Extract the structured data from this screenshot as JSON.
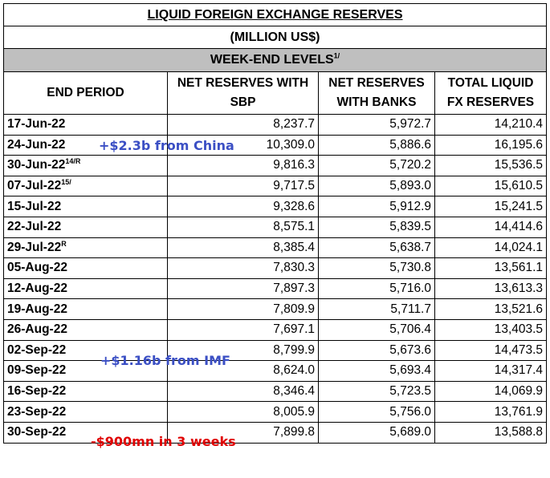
{
  "title": "LIQUID FOREIGN EXCHANGE RESERVES",
  "subtitle": "(MILLION US$)",
  "section": "WEEK-END LEVELS",
  "section_sup": "1/",
  "headers": {
    "period": "END PERIOD",
    "sbp_line1": "NET RESERVES WITH",
    "sbp_line2": "SBP",
    "banks_line1": "NET RESERVES",
    "banks_line2": "WITH BANKS",
    "total_line1": "TOTAL LIQUID",
    "total_line2": "FX RESERVES"
  },
  "rows": [
    {
      "period": "17-Jun-22",
      "sup": "",
      "sbp": "8,237.7",
      "banks": "5,972.7",
      "total": "14,210.4"
    },
    {
      "period": "24-Jun-22",
      "sup": "",
      "sbp": "10,309.0",
      "banks": "5,886.6",
      "total": "16,195.6"
    },
    {
      "period": "30-Jun-22",
      "sup": "14/R",
      "sbp": "9,816.3",
      "banks": "5,720.2",
      "total": "15,536.5"
    },
    {
      "period": "07-Jul-22",
      "sup": "15/",
      "sbp": "9,717.5",
      "banks": "5,893.0",
      "total": "15,610.5"
    },
    {
      "period": "15-Jul-22",
      "sup": "",
      "sbp": "9,328.6",
      "banks": "5,912.9",
      "total": "15,241.5"
    },
    {
      "period": "22-Jul-22",
      "sup": "",
      "sbp": "8,575.1",
      "banks": "5,839.5",
      "total": "14,414.6"
    },
    {
      "period": "29-Jul-22",
      "sup": "R",
      "sbp": "8,385.4",
      "banks": "5,638.7",
      "total": "14,024.1"
    },
    {
      "period": "05-Aug-22",
      "sup": "",
      "sbp": "7,830.3",
      "banks": "5,730.8",
      "total": "13,561.1"
    },
    {
      "period": "12-Aug-22",
      "sup": "",
      "sbp": "7,897.3",
      "banks": "5,716.0",
      "total": "13,613.3"
    },
    {
      "period": "19-Aug-22",
      "sup": "",
      "sbp": "7,809.9",
      "banks": "5,711.7",
      "total": "13,521.6"
    },
    {
      "period": "26-Aug-22",
      "sup": "",
      "sbp": "7,697.1",
      "banks": "5,706.4",
      "total": "13,403.5"
    },
    {
      "period": "02-Sep-22",
      "sup": "",
      "sbp": "8,799.9",
      "banks": "5,673.6",
      "total": "14,473.5"
    },
    {
      "period": "09-Sep-22",
      "sup": "",
      "sbp": "8,624.0",
      "banks": "5,693.4",
      "total": "14,317.4"
    },
    {
      "period": "16-Sep-22",
      "sup": "",
      "sbp": "8,346.4",
      "banks": "5,723.5",
      "total": "14,069.9"
    },
    {
      "period": "23-Sep-22",
      "sup": "",
      "sbp": "8,005.9",
      "banks": "5,756.0",
      "total": "13,761.9"
    },
    {
      "period": "30-Sep-22",
      "sup": "",
      "sbp": "7,899.8",
      "banks": "5,689.0",
      "total": "13,588.8"
    }
  ],
  "annotations": {
    "china": "+$2.3b from China",
    "imf": "+$1.16b from IMF",
    "decline": "-$900mn in 3 weeks",
    "china_color": "#3b4fc4",
    "imf_color": "#3b4fc4",
    "decline_color": "#e00000"
  },
  "chart_data": {
    "type": "table",
    "title": "LIQUID FOREIGN EXCHANGE RESERVES",
    "subtitle": "(MILLION US$)",
    "columns": [
      "END PERIOD",
      "NET RESERVES WITH SBP",
      "NET RESERVES WITH BANKS",
      "TOTAL LIQUID FX RESERVES"
    ],
    "categories": [
      "17-Jun-22",
      "24-Jun-22",
      "30-Jun-22",
      "07-Jul-22",
      "15-Jul-22",
      "22-Jul-22",
      "29-Jul-22",
      "05-Aug-22",
      "12-Aug-22",
      "19-Aug-22",
      "26-Aug-22",
      "02-Sep-22",
      "09-Sep-22",
      "16-Sep-22",
      "23-Sep-22",
      "30-Sep-22"
    ],
    "series": [
      {
        "name": "NET RESERVES WITH SBP",
        "values": [
          8237.7,
          10309.0,
          9816.3,
          9717.5,
          9328.6,
          8575.1,
          8385.4,
          7830.3,
          7897.3,
          7809.9,
          7697.1,
          8799.9,
          8624.0,
          8346.4,
          8005.9,
          7899.8
        ]
      },
      {
        "name": "NET RESERVES WITH BANKS",
        "values": [
          5972.7,
          5886.6,
          5720.2,
          5893.0,
          5912.9,
          5839.5,
          5638.7,
          5730.8,
          5716.0,
          5711.7,
          5706.4,
          5673.6,
          5693.4,
          5723.5,
          5756.0,
          5689.0
        ]
      },
      {
        "name": "TOTAL LIQUID FX RESERVES",
        "values": [
          14210.4,
          16195.6,
          15536.5,
          15610.5,
          15241.5,
          14414.6,
          14024.1,
          13561.1,
          13613.3,
          13521.6,
          13403.5,
          14473.5,
          14317.4,
          14069.9,
          13761.9,
          13588.8
        ]
      }
    ]
  }
}
